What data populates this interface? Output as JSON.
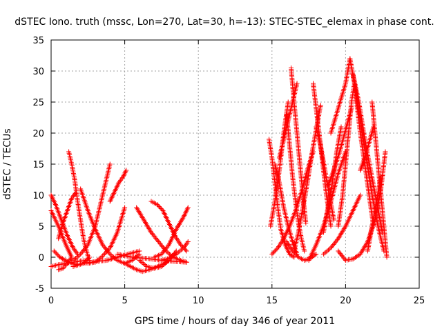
{
  "chart_data": {
    "type": "scatter",
    "title": "dSTEC Iono. truth (mssc, Lon=270, Lat=30, h=-13): STEC-STEC_elemax in phase cont.",
    "xlabel": "GPS time / hours of day 346 of year 2011",
    "ylabel": "dSTEC  / TECUs",
    "xlim": [
      0,
      25
    ],
    "ylim": [
      -5,
      35
    ],
    "xticks": [
      0,
      5,
      10,
      15,
      20,
      25
    ],
    "yticks": [
      -5,
      0,
      5,
      10,
      15,
      20,
      25,
      30,
      35
    ],
    "grid": true,
    "marker": "+",
    "color": "#ff0000",
    "series": [
      {
        "x": [
          0.0,
          0.5,
          1.0,
          1.4,
          1.1,
          0.8,
          0.5
        ],
        "y": [
          7.5,
          5.0,
          2.0,
          0.0,
          -1.0,
          -1.8,
          -2.0
        ]
      },
      {
        "x": [
          0.0,
          0.3,
          0.7,
          1.1,
          1.5,
          1.8
        ],
        "y": [
          10.0,
          8.5,
          6.0,
          3.5,
          1.5,
          0.5
        ]
      },
      {
        "x": [
          1.2,
          1.4,
          1.6,
          1.8,
          2.0,
          2.2,
          2.4,
          2.6
        ],
        "y": [
          17.0,
          15.0,
          12.5,
          9.0,
          6.0,
          3.0,
          1.0,
          -0.5
        ]
      },
      {
        "x": [
          0.5,
          0.8,
          1.1,
          1.4,
          1.7
        ],
        "y": [
          3.0,
          5.5,
          7.5,
          9.5,
          10.5
        ]
      },
      {
        "x": [
          0.2,
          0.6,
          1.2,
          1.7,
          2.2,
          2.6
        ],
        "y": [
          1.0,
          0.0,
          -0.8,
          -1.2,
          -1.0,
          0.0
        ]
      },
      {
        "x": [
          0.0,
          0.5,
          1.0,
          1.5,
          2.0,
          2.5
        ],
        "y": [
          -1.5,
          -1.2,
          -1.0,
          -0.8,
          -0.6,
          -0.5
        ]
      },
      {
        "x": [
          1.5,
          2.0,
          2.5,
          3.0,
          3.5,
          4.0
        ],
        "y": [
          -0.5,
          0.5,
          2.0,
          5.0,
          10.0,
          15.0
        ]
      },
      {
        "x": [
          2.0,
          2.5,
          3.0,
          3.5,
          4.0,
          4.5,
          5.0,
          5.5,
          6.0
        ],
        "y": [
          11.0,
          7.5,
          4.5,
          2.0,
          0.5,
          -0.5,
          -1.0,
          -0.5,
          0.5
        ]
      },
      {
        "x": [
          2.5,
          3.0,
          3.5,
          4.0,
          4.5,
          5.0
        ],
        "y": [
          -1.0,
          -0.8,
          0.2,
          1.5,
          4.0,
          8.0
        ]
      },
      {
        "x": [
          4.0,
          4.3,
          4.6,
          4.9,
          5.1
        ],
        "y": [
          9.0,
          10.5,
          12.0,
          13.0,
          14.0
        ]
      },
      {
        "x": [
          1.5,
          2.2,
          3.0,
          3.8,
          4.5,
          5.2,
          6.0
        ],
        "y": [
          -1.5,
          -1.0,
          -0.7,
          -0.5,
          0.0,
          0.5,
          1.0
        ]
      },
      {
        "x": [
          5.0,
          5.4,
          5.8,
          6.2,
          6.7,
          7.2,
          7.7,
          8.0
        ],
        "y": [
          -1.0,
          -1.5,
          -2.0,
          -2.3,
          -2.0,
          -1.5,
          -1.0,
          -0.5
        ]
      },
      {
        "x": [
          5.8,
          6.3,
          6.8,
          7.3,
          7.8,
          8.3,
          8.8,
          9.2
        ],
        "y": [
          8.0,
          6.0,
          4.0,
          2.5,
          1.0,
          0.0,
          -0.5,
          -0.8
        ]
      },
      {
        "x": [
          6.0,
          6.5,
          7.0,
          7.5,
          8.0,
          8.5
        ],
        "y": [
          -0.5,
          -1.5,
          -1.8,
          -1.5,
          -0.5,
          1.0
        ]
      },
      {
        "x": [
          6.8,
          7.2,
          7.6,
          8.0,
          8.4,
          8.8,
          9.2
        ],
        "y": [
          9.0,
          8.5,
          7.5,
          5.5,
          3.5,
          2.0,
          1.0
        ]
      },
      {
        "x": [
          7.0,
          7.5,
          8.0,
          8.5,
          9.0,
          9.3
        ],
        "y": [
          0.0,
          0.5,
          2.0,
          4.5,
          6.5,
          8.0
        ]
      },
      {
        "x": [
          7.5,
          8.0,
          8.5,
          9.0,
          9.3
        ],
        "y": [
          -0.5,
          -0.2,
          0.5,
          1.5,
          2.5
        ]
      },
      {
        "x": [
          4.5,
          5.5,
          6.5,
          7.5,
          8.5,
          9.2
        ],
        "y": [
          0.5,
          0.0,
          -0.2,
          -0.5,
          -0.7,
          -0.8
        ]
      },
      {
        "x": [
          14.8,
          15.0,
          15.2,
          15.4,
          15.6,
          15.9,
          16.2,
          16.5
        ],
        "y": [
          19.0,
          16.0,
          12.0,
          8.0,
          4.5,
          2.0,
          0.5,
          0.0
        ]
      },
      {
        "x": [
          14.9,
          15.2,
          15.5,
          15.8,
          16.1
        ],
        "y": [
          5.0,
          9.0,
          14.0,
          20.0,
          25.0
        ]
      },
      {
        "x": [
          15.2,
          15.5,
          15.8,
          16.1,
          16.4,
          16.7
        ],
        "y": [
          15.0,
          12.0,
          8.0,
          5.0,
          2.5,
          0.5
        ]
      },
      {
        "x": [
          15.0,
          15.4,
          15.8,
          16.2,
          16.6,
          17.0,
          17.4,
          17.8
        ],
        "y": [
          0.5,
          1.5,
          3.0,
          5.0,
          7.5,
          10.5,
          14.0,
          17.0
        ]
      },
      {
        "x": [
          15.5,
          15.8,
          16.1,
          16.4,
          16.7
        ],
        "y": [
          16.0,
          19.0,
          22.0,
          25.0,
          28.0
        ]
      },
      {
        "x": [
          16.0,
          16.2,
          16.4,
          16.6,
          16.8,
          17.0,
          17.2
        ],
        "y": [
          23.0,
          18.0,
          13.0,
          9.0,
          5.5,
          3.0,
          1.0
        ]
      },
      {
        "x": [
          16.3,
          16.5,
          16.7,
          16.9,
          17.1,
          17.3
        ],
        "y": [
          30.5,
          25.0,
          20.0,
          15.0,
          10.0,
          5.5
        ]
      },
      {
        "x": [
          16.5,
          16.8,
          17.1,
          17.4,
          17.7,
          18.0,
          18.3
        ],
        "y": [
          1.0,
          4.0,
          8.0,
          12.0,
          16.5,
          20.5,
          24.5
        ]
      },
      {
        "x": [
          16.0,
          16.4,
          16.8,
          17.2,
          17.6,
          18.0
        ],
        "y": [
          2.5,
          1.0,
          0.0,
          -0.5,
          -0.2,
          0.5
        ]
      },
      {
        "x": [
          17.8,
          18.1,
          18.4,
          18.7,
          19.0
        ],
        "y": [
          28.0,
          22.0,
          16.0,
          10.0,
          5.0
        ]
      },
      {
        "x": [
          18.0,
          18.3,
          18.6,
          18.9,
          19.2
        ],
        "y": [
          21.0,
          18.0,
          14.0,
          10.0,
          6.0
        ]
      },
      {
        "x": [
          17.5,
          18.0,
          18.5,
          19.0,
          19.5,
          20.0
        ],
        "y": [
          -0.5,
          2.0,
          5.0,
          9.0,
          13.5,
          17.0
        ]
      },
      {
        "x": [
          18.5,
          18.8,
          19.1,
          19.4,
          19.7
        ],
        "y": [
          4.0,
          8.0,
          12.0,
          17.0,
          21.0
        ]
      },
      {
        "x": [
          18.8,
          19.2,
          19.6,
          20.0,
          20.4
        ],
        "y": [
          11.5,
          14.0,
          17.0,
          20.5,
          24.0
        ]
      },
      {
        "x": [
          18.5,
          19.0,
          19.5,
          20.0,
          20.5,
          21.0
        ],
        "y": [
          0.5,
          1.5,
          3.0,
          5.0,
          7.5,
          10.0
        ]
      },
      {
        "x": [
          19.5,
          19.8,
          20.0,
          20.2,
          20.4,
          20.6,
          20.8,
          21.0,
          21.3,
          21.6,
          21.9
        ],
        "y": [
          5.0,
          10.0,
          15.0,
          20.0,
          25.0,
          28.0,
          24.0,
          20.0,
          15.0,
          10.0,
          5.0
        ]
      },
      {
        "x": [
          19.0,
          19.5,
          20.0,
          20.3
        ],
        "y": [
          20.0,
          24.0,
          28.0,
          32.0
        ]
      },
      {
        "x": [
          20.3,
          20.6,
          21.0,
          21.4,
          21.8,
          22.2,
          22.6
        ],
        "y": [
          32.0,
          28.0,
          22.0,
          16.0,
          10.0,
          5.0,
          1.0
        ]
      },
      {
        "x": [
          20.5,
          20.9,
          21.3,
          21.7,
          22.1,
          22.5
        ],
        "y": [
          29.5,
          25.0,
          19.0,
          14.0,
          9.0,
          4.0
        ]
      },
      {
        "x": [
          19.5,
          20.0,
          20.5,
          21.0,
          21.5,
          22.0,
          22.4,
          22.7
        ],
        "y": [
          1.0,
          -0.5,
          -0.3,
          0.5,
          2.5,
          6.0,
          11.0,
          17.0
        ]
      },
      {
        "x": [
          21.8,
          22.0,
          22.2,
          22.4,
          22.6,
          22.8
        ],
        "y": [
          25.0,
          20.0,
          15.0,
          10.0,
          5.0,
          0.0
        ]
      },
      {
        "x": [
          21.0,
          21.3,
          21.6,
          21.9
        ],
        "y": [
          14.0,
          16.0,
          18.5,
          21.0
        ]
      },
      {
        "x": [
          21.5,
          21.8,
          22.1,
          22.4
        ],
        "y": [
          1.0,
          5.0,
          9.0,
          13.0
        ]
      }
    ]
  }
}
